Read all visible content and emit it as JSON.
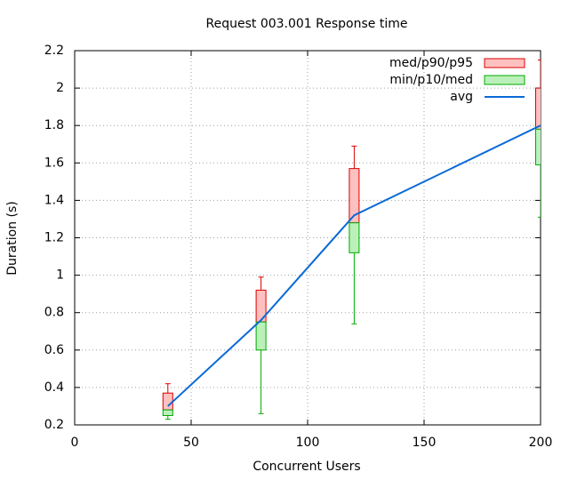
{
  "chart_data": {
    "type": "candlestick",
    "title": "Request 003.001 Response time",
    "x_label": "Concurrent Users",
    "y_label": "Duration (s)",
    "x": [
      40,
      80,
      120,
      200
    ],
    "stats": {
      "min": [
        0.23,
        0.26,
        0.74,
        1.31
      ],
      "p10": [
        0.25,
        0.6,
        1.12,
        1.59
      ],
      "med": [
        0.28,
        0.75,
        1.28,
        1.78
      ],
      "p90": [
        0.37,
        0.92,
        1.57,
        2.0
      ],
      "p95": [
        0.42,
        0.99,
        1.69,
        2.15
      ]
    },
    "series": [
      {
        "name": "med/p90/p95",
        "color": "#ffc0c0",
        "edge_color": "#dd0000"
      },
      {
        "name": "min/p10/med",
        "color": "#bbf0bb",
        "edge_color": "#00aa00"
      },
      {
        "name": "avg",
        "color": "#0a6ad8",
        "values": [
          0.3,
          0.76,
          1.32,
          1.8
        ]
      }
    ],
    "xlim": [
      0,
      200
    ],
    "xticks": [
      0,
      50,
      100,
      150,
      200
    ],
    "ylim": [
      0.2,
      2.2
    ],
    "yticks": [
      0.2,
      0.4,
      0.6,
      0.8,
      1,
      1.2,
      1.4,
      1.6,
      1.8,
      2,
      2.2
    ],
    "grid": true,
    "legend": "top-right"
  }
}
